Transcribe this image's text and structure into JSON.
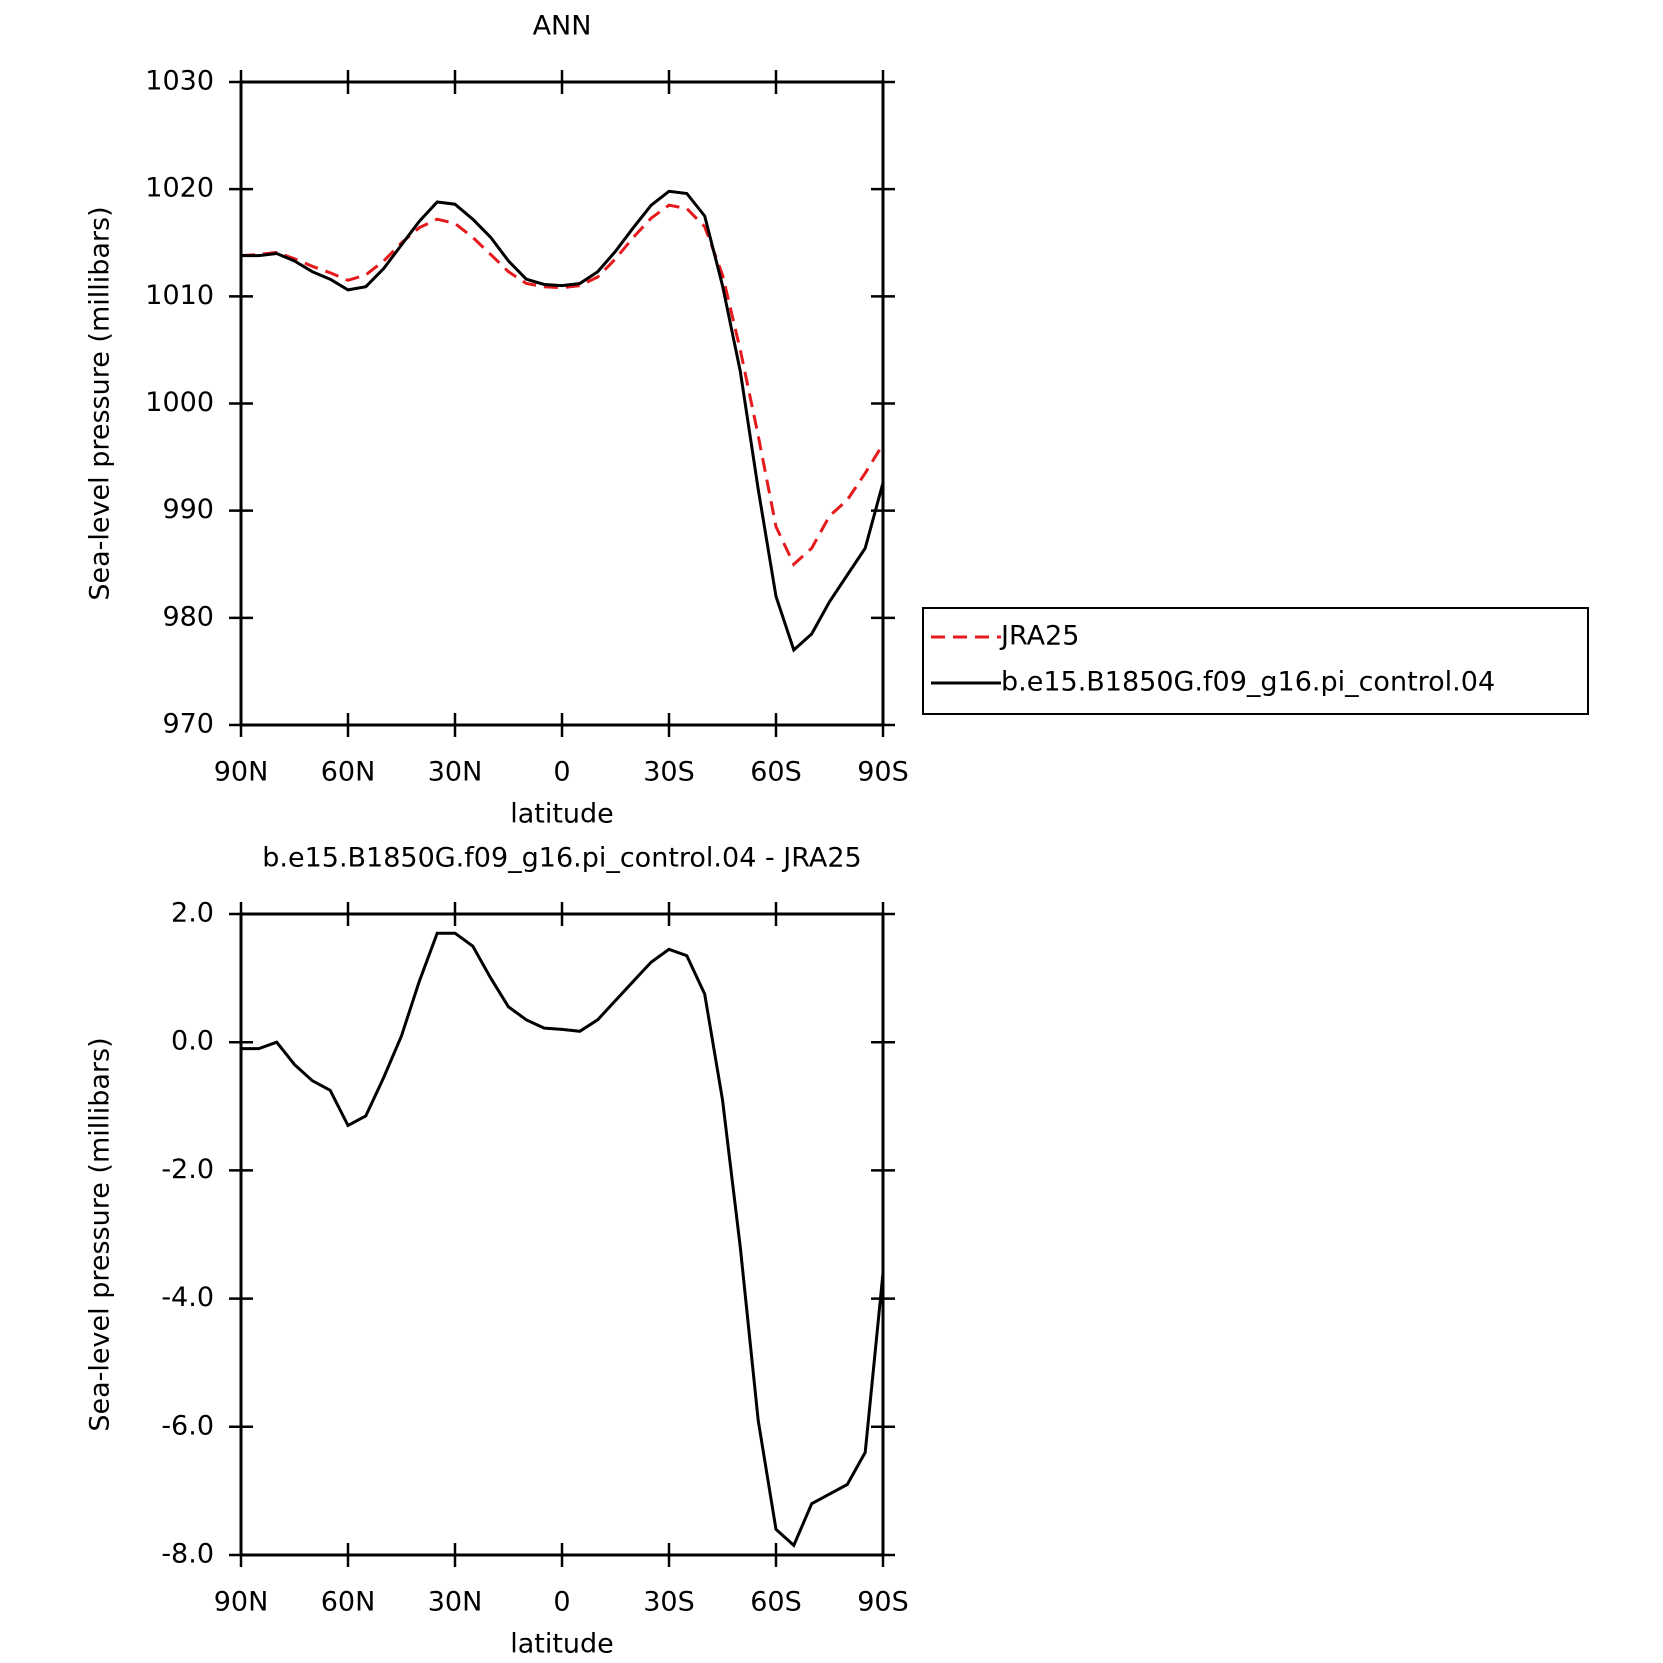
{
  "chart_data": [
    {
      "type": "line",
      "title": "ANN",
      "xlabel": "latitude",
      "ylabel": "Sea-level pressure (millibars)",
      "x": [
        90,
        85,
        80,
        75,
        70,
        65,
        60,
        55,
        50,
        45,
        40,
        35,
        30,
        25,
        20,
        15,
        10,
        5,
        0,
        -5,
        -10,
        -15,
        -20,
        -25,
        -30,
        -35,
        -40,
        -45,
        -50,
        -55,
        -60,
        -65,
        -70,
        -75,
        -80,
        -85,
        -90
      ],
      "series": [
        {
          "name": "JRA25",
          "color": "#e41a1c",
          "line_style": "dashed",
          "values": [
            1013.8,
            1013.9,
            1014.1,
            1013.5,
            1012.8,
            1012.2,
            1011.5,
            1012.0,
            1013.3,
            1015.0,
            1016.4,
            1017.2,
            1016.8,
            1015.5,
            1013.9,
            1012.3,
            1011.2,
            1010.9,
            1010.8,
            1011.0,
            1011.8,
            1013.5,
            1015.5,
            1017.3,
            1018.5,
            1018.2,
            1016.5,
            1012.0,
            1005.0,
            997.0,
            988.5,
            985.0,
            986.5,
            989.5,
            991.0,
            993.5,
            996.2
          ]
        },
        {
          "name": "b.e15.B1850G.f09_g16.pi_control.04",
          "color": "#000000",
          "line_style": "solid",
          "values": [
            1013.8,
            1013.8,
            1014.0,
            1013.3,
            1012.3,
            1011.6,
            1010.6,
            1010.9,
            1012.6,
            1014.8,
            1017.0,
            1018.8,
            1018.6,
            1017.2,
            1015.5,
            1013.3,
            1011.6,
            1011.1,
            1011.0,
            1011.2,
            1012.3,
            1014.2,
            1016.4,
            1018.5,
            1019.8,
            1019.6,
            1017.5,
            1011.0,
            1003.0,
            992.0,
            982.0,
            977.0,
            978.5,
            981.5,
            984.0,
            986.5,
            992.6
          ]
        }
      ],
      "xlim": [
        90,
        -90
      ],
      "xticks": [
        {
          "value": 90,
          "label": "90N"
        },
        {
          "value": 60,
          "label": "60N"
        },
        {
          "value": 30,
          "label": "30N"
        },
        0,
        {
          "value": -30,
          "label": "30S"
        },
        {
          "value": -60,
          "label": "60S"
        },
        {
          "value": -90,
          "label": "90S"
        }
      ],
      "ylim": [
        970,
        1030
      ],
      "yticks": [
        970,
        980,
        990,
        1000,
        1010,
        1020,
        1030
      ],
      "legend": "right"
    },
    {
      "type": "line",
      "title": "b.e15.B1850G.f09_g16.pi_control.04 - JRA25",
      "xlabel": "latitude",
      "ylabel": "Sea-level pressure (millibars)",
      "x": [
        90,
        85,
        80,
        75,
        70,
        65,
        60,
        55,
        50,
        45,
        40,
        35,
        30,
        25,
        20,
        15,
        10,
        5,
        0,
        -5,
        -10,
        -15,
        -20,
        -25,
        -30,
        -35,
        -40,
        -45,
        -50,
        -55,
        -60,
        -65,
        -70,
        -75,
        -80,
        -85,
        -90
      ],
      "values": [
        -0.1,
        -0.1,
        0.0,
        -0.35,
        -0.6,
        -0.75,
        -1.3,
        -1.15,
        -0.55,
        0.1,
        0.95,
        1.7,
        1.7,
        1.5,
        1.0,
        0.55,
        0.35,
        0.22,
        0.2,
        0.17,
        0.35,
        0.65,
        0.95,
        1.25,
        1.45,
        1.35,
        0.75,
        -0.9,
        -3.2,
        -5.9,
        -7.6,
        -7.85,
        -7.2,
        -7.05,
        -6.9,
        -6.4,
        -3.6
      ],
      "color": "#000000",
      "line_style": "solid",
      "xlim": [
        90,
        -90
      ],
      "xticks": [
        {
          "value": 90,
          "label": "90N"
        },
        {
          "value": 60,
          "label": "60N"
        },
        {
          "value": 30,
          "label": "30N"
        },
        0,
        {
          "value": -30,
          "label": "30S"
        },
        {
          "value": -60,
          "label": "60S"
        },
        {
          "value": -90,
          "label": "90S"
        }
      ],
      "ylim": [
        -8,
        2
      ],
      "yticks": [
        {
          "value": -8,
          "label": "-8.0"
        },
        {
          "value": -6,
          "label": "-6.0"
        },
        {
          "value": -4,
          "label": "-4.0"
        },
        {
          "value": -2,
          "label": "-2.0"
        },
        {
          "value": 0,
          "label": "0.0"
        },
        {
          "value": 2,
          "label": "2.0"
        }
      ]
    }
  ]
}
